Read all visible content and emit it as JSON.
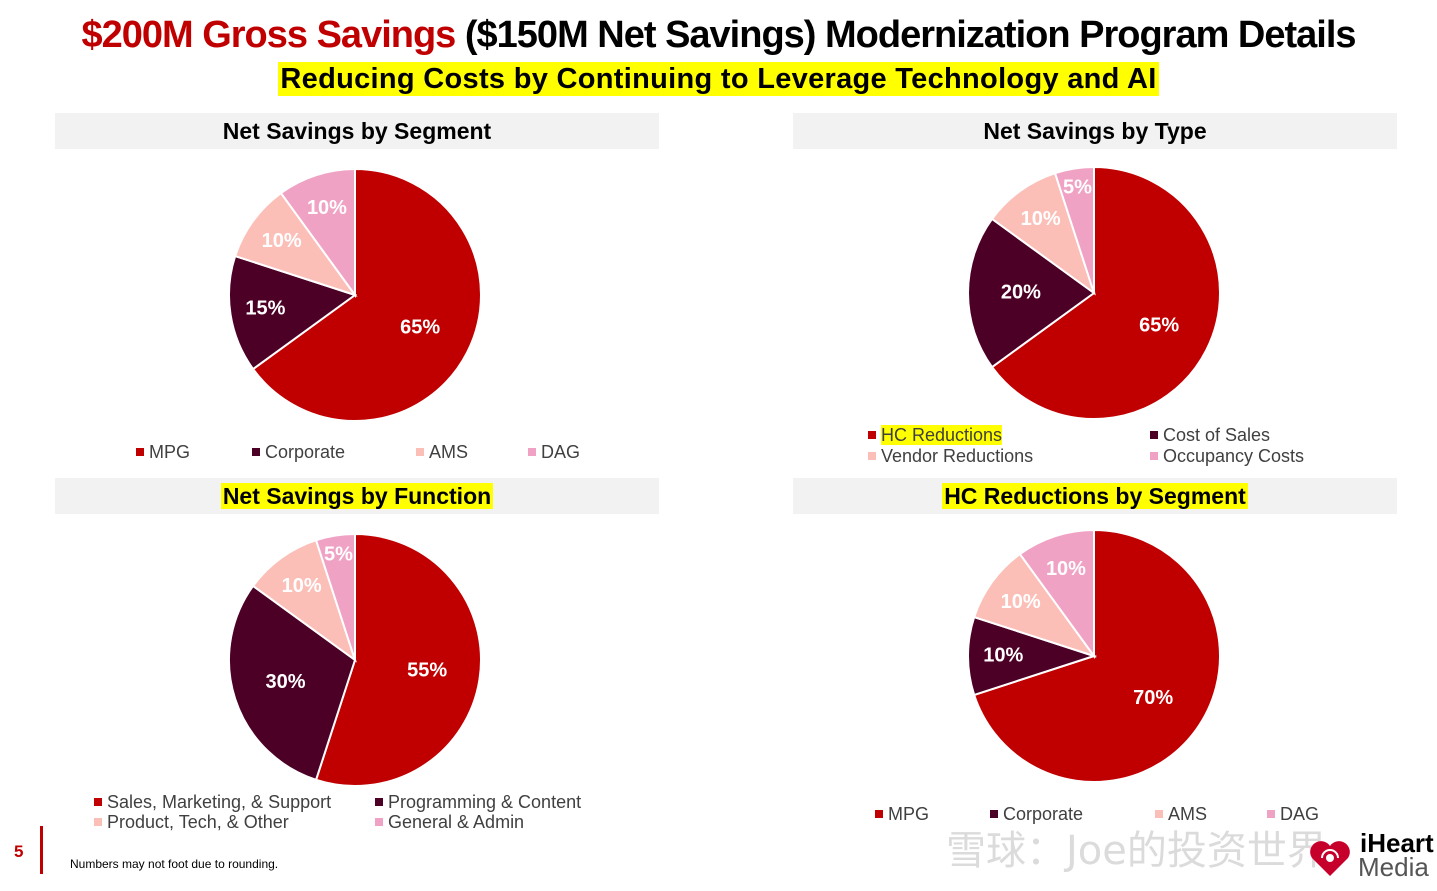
{
  "title": {
    "red_part": "$200M Gross Savings",
    "black_part": "($150M Net Savings) Modernization Program Details",
    "subtitle": "Reducing Costs by Continuing to Leverage Technology and AI"
  },
  "colors": {
    "dark_red": "#c00000",
    "maroon": "#4d0026",
    "light_pink": "#fbbfb8",
    "pink": "#f0a2c4",
    "highlight": "#ffff00"
  },
  "chart_data": [
    {
      "type": "pie",
      "title": "Net Savings by Segment",
      "highlighted": false,
      "categories": [
        "MPG",
        "Corporate",
        "AMS",
        "DAG"
      ],
      "values": [
        65,
        15,
        10,
        10
      ],
      "labels": [
        "65%",
        "15%",
        "10%",
        "10%"
      ],
      "colors": [
        "#c00000",
        "#4d0026",
        "#fbbfb8",
        "#f0a2c4"
      ],
      "legend": [
        "MPG",
        "Corporate",
        "AMS",
        "DAG"
      ]
    },
    {
      "type": "pie",
      "title": "Net Savings by Type",
      "highlighted": false,
      "categories": [
        "HC Reductions",
        "Cost of Sales",
        "Vendor Reductions",
        "Occupancy Costs"
      ],
      "values": [
        65,
        20,
        10,
        5
      ],
      "labels": [
        "65%",
        "20%",
        "10%",
        "5%"
      ],
      "colors": [
        "#c00000",
        "#4d0026",
        "#fbbfb8",
        "#f0a2c4"
      ],
      "legend": [
        "HC Reductions",
        "Cost of Sales",
        "Vendor Reductions",
        "Occupancy Costs"
      ],
      "legend_highlight": "HC Reductions"
    },
    {
      "type": "pie",
      "title": "Net Savings by Function",
      "highlighted": true,
      "categories": [
        "Sales, Marketing, & Support",
        "Programming & Content",
        "Product, Tech, & Other",
        "General & Admin"
      ],
      "values": [
        55,
        30,
        10,
        5
      ],
      "labels": [
        "55%",
        "30%",
        "10%",
        "5%"
      ],
      "colors": [
        "#c00000",
        "#4d0026",
        "#fbbfb8",
        "#f0a2c4"
      ],
      "legend": [
        "Sales, Marketing, & Support",
        "Programming & Content",
        "Product, Tech, & Other",
        "General & Admin"
      ]
    },
    {
      "type": "pie",
      "title": "HC Reductions by Segment",
      "highlighted": true,
      "categories": [
        "MPG",
        "Corporate",
        "AMS",
        "DAG"
      ],
      "values": [
        70,
        10,
        10,
        10
      ],
      "labels": [
        "70%",
        "10%",
        "10%",
        "10%"
      ],
      "colors": [
        "#c00000",
        "#4d0026",
        "#fbbfb8",
        "#f0a2c4"
      ],
      "legend": [
        "MPG",
        "Corporate",
        "AMS",
        "DAG"
      ]
    }
  ],
  "footer": {
    "page_number": "5",
    "footnote": "Numbers may not foot due to rounding.",
    "brand_heart": "iHeart",
    "brand_media": "Media",
    "watermark": "雪球：Joe的投资世界"
  }
}
